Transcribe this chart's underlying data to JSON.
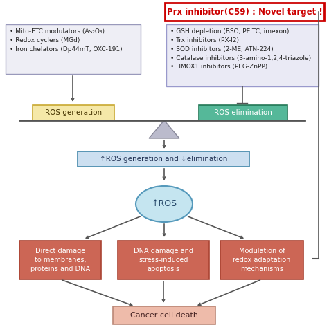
{
  "title": "Prx inhibitor(C59) : Novel target !",
  "left_box_text": "• Mito-ETC modulators (As₂O₃)\n• Redox cyclers (MGd)\n• Iron chelators (Dp44mT, OXC-191)",
  "right_box_text": "• GSH depletion (BSO, PEITC, imexon)\n• Trx inhibitors (PX-I2)\n• SOD inhibitors (2-ME, ATN-224)\n• Catalase inhibitors (3-amino-1,2,4-triazole)\n• HMOX1 inhibitors (PEG-ZnPP)",
  "ros_gen_text": "ROS generation",
  "ros_elim_text": "ROS elimination",
  "balance_text": "↑ROS generation and ↓elimination",
  "ros_oval_text": "↑ROS",
  "box1_text": "Direct damage\nto membranes,\nproteins and DNA",
  "box2_text": "DNA damage and\nstress-induced\napoptosis",
  "box3_text": "Modulation of\nredox adaptation\nmechanisms",
  "cancer_text": "Cancer cell death",
  "left_box_color": "#eeeef5",
  "left_box_border": "#9999bb",
  "right_box_color": "#eaeaf5",
  "right_box_border": "#9999cc",
  "title_box_color": "#ffffff",
  "title_box_border": "#cc0000",
  "title_text_color": "#cc0000",
  "ros_gen_color": "#f5e8a8",
  "ros_gen_border": "#c8a830",
  "ros_elim_color": "#55b899",
  "ros_elim_border": "#227755",
  "balance_box_color": "#ccdff0",
  "balance_box_border": "#4488aa",
  "oval_color": "#c5e5f0",
  "oval_border": "#5599bb",
  "red_box_color": "#cc6655",
  "red_box_border": "#aa4433",
  "cancer_box_color": "#eebbaa",
  "cancer_box_border": "#bb8877",
  "arrow_color": "#555555",
  "scale_bar_color": "#555555",
  "triangle_face": "#bbbbcc",
  "triangle_edge": "#888899"
}
